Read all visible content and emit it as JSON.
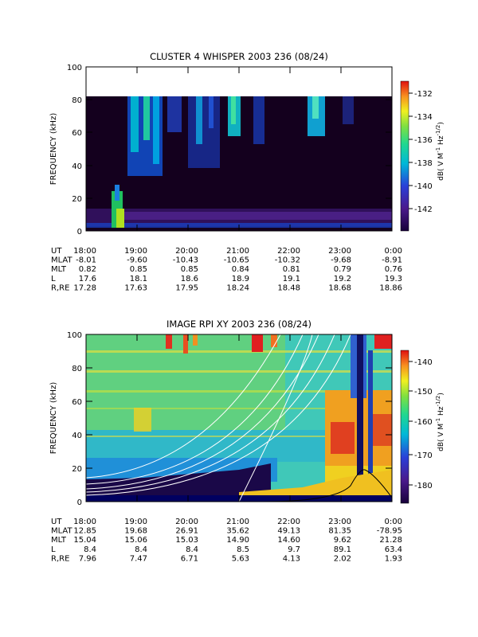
{
  "chart_data": [
    {
      "type": "heatmap",
      "title": "CLUSTER 4 WHISPER 2003 236 (08/24)",
      "ylabel": "FREQUENCY (kHz)",
      "ylim": [
        0,
        100
      ],
      "y_ticks": [
        "0",
        "20",
        "40",
        "60",
        "80",
        "100"
      ],
      "x_ticks": [
        "18:00",
        "19:00",
        "20:00",
        "21:00",
        "22:00",
        "23:00",
        "0:00"
      ],
      "colorbar": {
        "label_parts": [
          "dB( V M",
          "-1",
          " Hz",
          "-1/2",
          ")"
        ],
        "ticks": [
          "-132",
          "-134",
          "-136",
          "-138",
          "-140",
          "-142"
        ]
      },
      "ephemeris": [
        {
          "label": "UT",
          "values": [
            "18:00",
            "19:00",
            "20:00",
            "21:00",
            "22:00",
            "23:00",
            "0:00"
          ]
        },
        {
          "label": "MLAT",
          "values": [
            "-8.01",
            "-9.60",
            "-10.43",
            "-10.65",
            "-10.32",
            "-9.68",
            "-8.91"
          ]
        },
        {
          "label": "MLT",
          "values": [
            "0.82",
            "0.85",
            "0.85",
            "0.84",
            "0.81",
            "0.79",
            "0.76"
          ]
        },
        {
          "label": "L",
          "values": [
            "17.6",
            "18.1",
            "18.6",
            "18.9",
            "19.1",
            "19.2",
            "19.3"
          ]
        },
        {
          "label": "R,RE",
          "values": [
            "17.28",
            "17.63",
            "17.95",
            "18.24",
            "18.48",
            "18.68",
            "18.86"
          ]
        }
      ]
    },
    {
      "type": "heatmap",
      "title": "IMAGE RPI XY 2003 236 (08/24)",
      "ylabel": "FREQUENCY (kHz)",
      "ylim": [
        0,
        100
      ],
      "y_ticks": [
        "0",
        "20",
        "40",
        "60",
        "80",
        "100"
      ],
      "x_ticks": [
        "18:00",
        "19:00",
        "20:00",
        "21:00",
        "22:00",
        "23:00",
        "0:00"
      ],
      "colorbar": {
        "label_parts": [
          "dB( V M",
          "-1",
          " Hz",
          "-1/2",
          ")"
        ],
        "ticks": [
          "-140",
          "-150",
          "-160",
          "-170",
          "-180"
        ]
      },
      "ephemeris": [
        {
          "label": "UT",
          "values": [
            "18:00",
            "19:00",
            "20:00",
            "21:00",
            "22:00",
            "23:00",
            "0:00"
          ]
        },
        {
          "label": "MLAT",
          "values": [
            "12.85",
            "19.68",
            "26.91",
            "35.62",
            "49.13",
            "81.35",
            "-78.95"
          ]
        },
        {
          "label": "MLT",
          "values": [
            "15.04",
            "15.06",
            "15.03",
            "14.90",
            "14.60",
            "9.62",
            "21.28"
          ]
        },
        {
          "label": "L",
          "values": [
            "8.4",
            "8.4",
            "8.4",
            "8.5",
            "9.7",
            "89.1",
            "63.4"
          ]
        },
        {
          "label": "R,RE",
          "values": [
            "7.96",
            "7.47",
            "6.71",
            "5.63",
            "4.13",
            "2.02",
            "1.93"
          ]
        }
      ]
    }
  ]
}
